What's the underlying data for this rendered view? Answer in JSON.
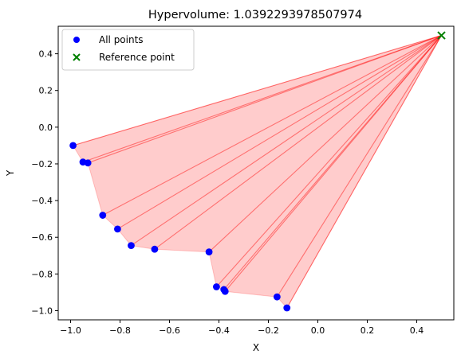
{
  "chart_data": {
    "type": "scatter",
    "title": "Hypervolume: 1.0392293978507974",
    "xlabel": "X",
    "ylabel": "Y",
    "xlim": [
      -1.05,
      0.55
    ],
    "ylim": [
      -1.05,
      0.55
    ],
    "xticks": [
      -1.0,
      -0.8,
      -0.6,
      -0.4,
      -0.2,
      0.0,
      0.2,
      0.4
    ],
    "yticks": [
      -1.0,
      -0.8,
      -0.6,
      -0.4,
      -0.2,
      0.0,
      0.2,
      0.4
    ],
    "xtick_labels": [
      "−1.0",
      "−0.8",
      "−0.6",
      "−0.4",
      "−0.2",
      "0.0",
      "0.2",
      "0.4"
    ],
    "ytick_labels": [
      "−1.0",
      "−0.8",
      "−0.6",
      "−0.4",
      "−0.2",
      "0.0",
      "0.2",
      "0.4"
    ],
    "grid": false,
    "legend_position": "top-left",
    "series": [
      {
        "name": "All points",
        "marker": "circle",
        "color": "#0000ff",
        "points": [
          [
            -0.99,
            -0.1
          ],
          [
            -0.95,
            -0.19
          ],
          [
            -0.93,
            -0.195
          ],
          [
            -0.87,
            -0.48
          ],
          [
            -0.81,
            -0.555
          ],
          [
            -0.755,
            -0.645
          ],
          [
            -0.66,
            -0.665
          ],
          [
            -0.44,
            -0.68
          ],
          [
            -0.41,
            -0.87
          ],
          [
            -0.38,
            -0.885
          ],
          [
            -0.375,
            -0.895
          ],
          [
            -0.165,
            -0.925
          ],
          [
            -0.125,
            -0.985
          ]
        ]
      },
      {
        "name": "Reference point",
        "marker": "x",
        "color": "#008000",
        "points": [
          [
            0.5,
            0.5
          ]
        ]
      }
    ],
    "fill_color": "#ff0000",
    "line_color": "#ff0000"
  }
}
